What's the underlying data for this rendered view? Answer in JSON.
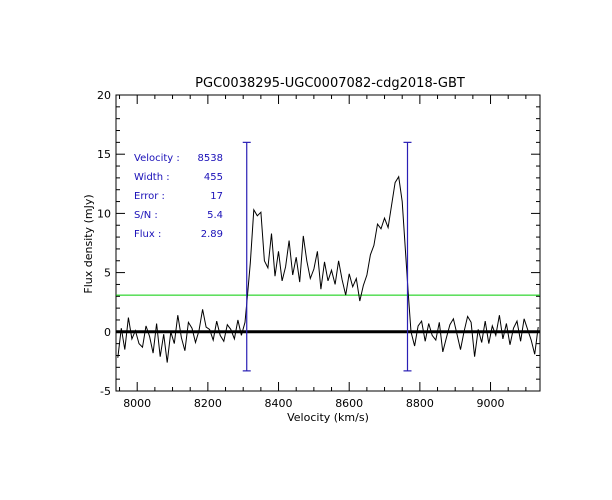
{
  "chart_data": {
    "type": "line",
    "title": "PGC0038295-UGC0007082-cdg2018-GBT",
    "xlabel": "Velocity (km/s)",
    "ylabel": "Flux density (mJy)",
    "xlim": [
      7940,
      9140
    ],
    "ylim": [
      -5,
      20
    ],
    "xticks": [
      8000,
      8200,
      8400,
      8600,
      8800,
      9000
    ],
    "yticks": [
      -5,
      0,
      5,
      10,
      15,
      20
    ],
    "grid": false,
    "colors": {
      "spectrum": "#000000",
      "zero_line": "#000000",
      "threshold": "#00cc00",
      "markers": "#2a1fb5",
      "annotations": "#1a10b8"
    },
    "threshold_level": 3.1,
    "velocity_markers": [
      {
        "x": 8310,
        "y_range": [
          -3.3,
          16
        ]
      },
      {
        "x": 8765,
        "y_range": [
          -3.3,
          16
        ]
      }
    ],
    "annotations": [
      {
        "label": "Velocity :",
        "value": "8538"
      },
      {
        "label": "Width  :",
        "value": "455"
      },
      {
        "label": "Error  :",
        "value": "17"
      },
      {
        "label": "S/N   :",
        "value": "5.4"
      },
      {
        "label": "Flux   :",
        "value": "2.89"
      }
    ],
    "series": [
      {
        "x": [
          7945,
          7955,
          7965,
          7975,
          7985,
          7995,
          8005,
          8015,
          8025,
          8035,
          8045,
          8055,
          8065,
          8075,
          8085,
          8095,
          8105,
          8115,
          8125,
          8135,
          8145,
          8155,
          8165,
          8175,
          8185,
          8195,
          8205,
          8215,
          8225,
          8235,
          8245,
          8255,
          8265,
          8275,
          8285,
          8295,
          8305,
          8312,
          8320,
          8330,
          8340,
          8350,
          8360,
          8370,
          8380,
          8390,
          8400,
          8410,
          8420,
          8430,
          8440,
          8450,
          8460,
          8470,
          8480,
          8490,
          8500,
          8510,
          8520,
          8530,
          8540,
          8550,
          8560,
          8570,
          8580,
          8590,
          8600,
          8610,
          8620,
          8630,
          8640,
          8650,
          8660,
          8670,
          8680,
          8690,
          8700,
          8710,
          8720,
          8730,
          8740,
          8750,
          8760,
          8767,
          8775,
          8785,
          8795,
          8805,
          8815,
          8825,
          8835,
          8845,
          8855,
          8865,
          8875,
          8885,
          8895,
          8905,
          8915,
          8925,
          8935,
          8945,
          8955,
          8965,
          8975,
          8985,
          8995,
          9005,
          9015,
          9025,
          9035,
          9045,
          9055,
          9065,
          9075,
          9085,
          9095,
          9105,
          9115,
          9125,
          9135
        ],
        "y": [
          -2.2,
          0.3,
          -1.5,
          1.2,
          -0.6,
          0.1,
          -1.0,
          -1.3,
          0.5,
          -0.4,
          -1.8,
          0.7,
          -2.1,
          -0.2,
          -2.6,
          0.0,
          -1.0,
          1.4,
          -0.5,
          -1.6,
          0.8,
          0.3,
          -0.9,
          0.1,
          1.9,
          0.4,
          0.2,
          -0.7,
          0.9,
          -0.3,
          -0.8,
          0.6,
          0.2,
          -0.6,
          1.0,
          -0.3,
          0.8,
          3.0,
          5.8,
          10.3,
          9.8,
          10.1,
          6.0,
          5.4,
          8.3,
          4.7,
          6.8,
          4.3,
          5.5,
          7.7,
          4.8,
          6.3,
          4.2,
          8.1,
          6.0,
          4.5,
          5.3,
          6.8,
          3.6,
          5.9,
          4.3,
          5.2,
          4.0,
          6.0,
          4.4,
          3.1,
          4.9,
          3.8,
          4.5,
          2.6,
          3.9,
          4.8,
          6.5,
          7.3,
          9.1,
          8.7,
          9.6,
          8.8,
          10.7,
          12.6,
          13.1,
          11.0,
          6.5,
          3.3,
          0.0,
          -1.2,
          0.5,
          0.9,
          -0.8,
          0.7,
          -0.3,
          -0.7,
          0.8,
          -1.7,
          -0.5,
          0.6,
          1.1,
          -0.2,
          -1.5,
          0.0,
          1.3,
          0.8,
          -2.1,
          0.2,
          -0.9,
          0.9,
          -1.0,
          0.5,
          -0.3,
          1.4,
          -0.6,
          0.7,
          -1.1,
          0.3,
          0.9,
          -0.8,
          1.1,
          0.2,
          -0.7,
          -1.9,
          0.4
        ]
      }
    ]
  }
}
